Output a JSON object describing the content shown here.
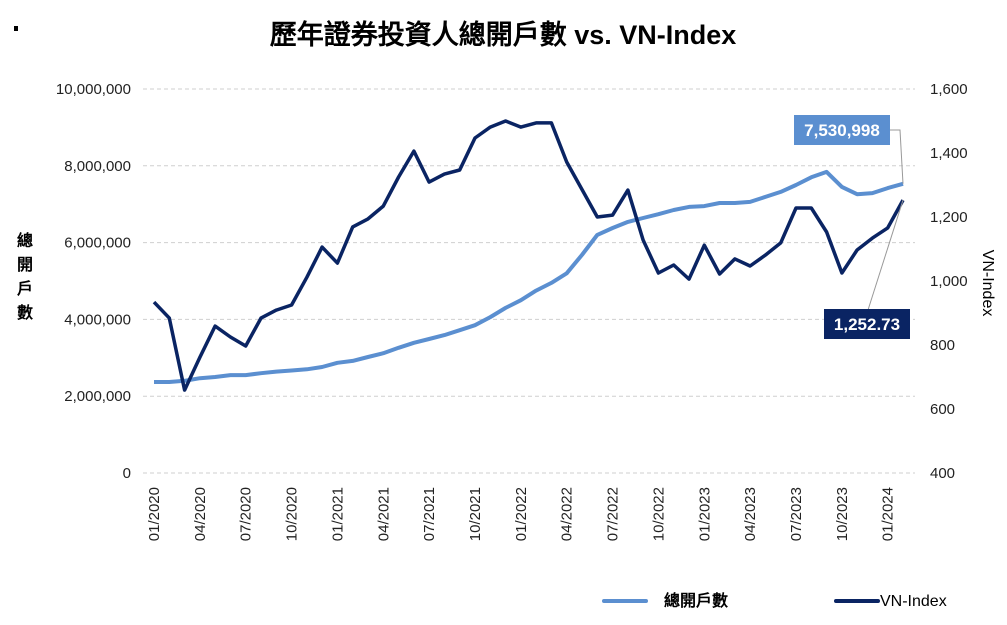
{
  "chart_data": {
    "type": "line",
    "title": "歷年證券投資人總開戶數 vs. VN-Index",
    "ylabel_left": "總開戶數",
    "ylabel_right": "VN-Index",
    "x_tick_labels": [
      "01/2020",
      "04/2020",
      "07/2020",
      "10/2020",
      "01/2021",
      "04/2021",
      "07/2021",
      "10/2021",
      "01/2022",
      "04/2022",
      "07/2022",
      "10/2022",
      "01/2023",
      "04/2023",
      "07/2023",
      "10/2023",
      "01/2024"
    ],
    "x_range": [
      "01/2020",
      "02/2024"
    ],
    "y_left_ticks": [
      "0",
      "2,000,000",
      "4,000,000",
      "6,000,000",
      "8,000,000",
      "10,000,000"
    ],
    "y_left_range": [
      0,
      10000000
    ],
    "y_right_ticks": [
      "400",
      "600",
      "800",
      "1,000",
      "1,200",
      "1,400",
      "1,600"
    ],
    "y_right_range": [
      400,
      1600
    ],
    "grid": "horizontal dashed",
    "legend_position": "bottom-right",
    "series": [
      {
        "name": "總開戶數",
        "axis": "left",
        "color": "#5b8fd0",
        "end_label": "7,530,998",
        "values": [
          2370000,
          2370000,
          2400000,
          2470000,
          2500000,
          2550000,
          2550000,
          2600000,
          2640000,
          2670000,
          2700000,
          2760000,
          2870000,
          2920000,
          3020000,
          3120000,
          3260000,
          3390000,
          3490000,
          3590000,
          3720000,
          3850000,
          4060000,
          4300000,
          4500000,
          4750000,
          4950000,
          5200000,
          5680000,
          6200000,
          6380000,
          6540000,
          6640000,
          6740000,
          6850000,
          6930000,
          6950000,
          7030000,
          7030000,
          7060000,
          7190000,
          7320000,
          7500000,
          7700000,
          7840000,
          7450000,
          7260000,
          7290000,
          7420000,
          7530998
        ]
      },
      {
        "name": "VN-Index",
        "axis": "right",
        "color": "#0a2463",
        "end_label": "1,252.73",
        "values": [
          934,
          884,
          659,
          762,
          859,
          825,
          797,
          884,
          909,
          925,
          1012,
          1106,
          1056,
          1169,
          1194,
          1234,
          1325,
          1406,
          1309,
          1334,
          1347,
          1447,
          1481,
          1500,
          1481,
          1494,
          1494,
          1372,
          1286,
          1200,
          1206,
          1284,
          1128,
          1025,
          1050,
          1006,
          1112,
          1022,
          1069,
          1047,
          1081,
          1119,
          1228,
          1228,
          1153,
          1025,
          1097,
          1134,
          1166,
          1252.73
        ]
      }
    ]
  }
}
